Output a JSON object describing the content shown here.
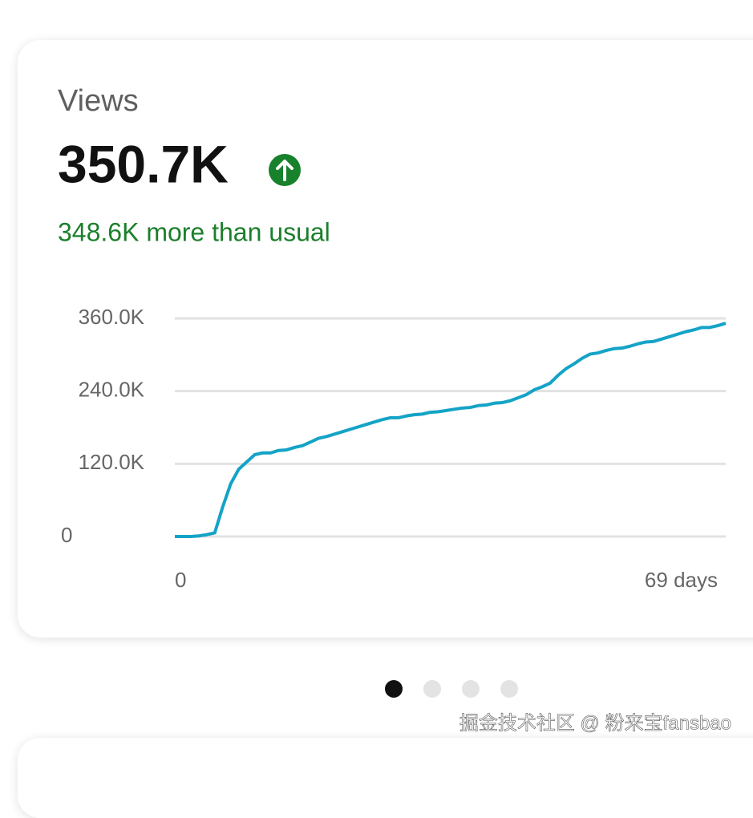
{
  "card": {
    "title": "Views",
    "value": "350.7K",
    "delta": "348.6K more than usual"
  },
  "chart_data": {
    "type": "line",
    "x": [
      0,
      1,
      2,
      3,
      4,
      5,
      6,
      7,
      8,
      9,
      10,
      11,
      12,
      13,
      14,
      15,
      16,
      17,
      18,
      19,
      20,
      21,
      22,
      23,
      24,
      25,
      26,
      27,
      28,
      29,
      30,
      31,
      32,
      33,
      34,
      35,
      36,
      37,
      38,
      39,
      40,
      41,
      42,
      43,
      44,
      45,
      46,
      47,
      48,
      49,
      50,
      51,
      52,
      53,
      54,
      55,
      56,
      57,
      58,
      59,
      60,
      61,
      62,
      63,
      64,
      65,
      66,
      67,
      68,
      69
    ],
    "series": [
      {
        "color": "#14a3c7",
        "values": [
          0,
          0,
          0,
          1000,
          3000,
          6000,
          49000,
          87000,
          111000,
          123000,
          135000,
          138000,
          138000,
          142000,
          143000,
          147000,
          150000,
          156000,
          162000,
          165000,
          169000,
          173000,
          177000,
          181000,
          185000,
          189000,
          193000,
          196000,
          196000,
          199000,
          201000,
          202000,
          205000,
          206000,
          208000,
          210000,
          212000,
          213000,
          216000,
          217000,
          220000,
          221000,
          224000,
          229000,
          234000,
          242000,
          247000,
          253000,
          266000,
          277000,
          285000,
          294000,
          301000,
          303000,
          307000,
          310000,
          311000,
          314000,
          318000,
          321000,
          322000,
          326000,
          330000,
          334000,
          338000,
          341000,
          345000,
          345000,
          348000,
          352000
        ]
      }
    ],
    "xlim": [
      0,
      69
    ],
    "xticks": [
      0,
      {
        "value": 69,
        "label": "69 days"
      }
    ],
    "ylim": [
      0,
      360000
    ],
    "yticks": [
      {
        "value": 0,
        "label": "0"
      },
      {
        "value": 120000,
        "label": "120.0K"
      },
      {
        "value": 240000,
        "label": "240.0K"
      },
      {
        "value": 360000,
        "label": "360.0K"
      }
    ],
    "grid": true
  },
  "watermark": "掘金技术社区 @ 粉来宝fansbao"
}
